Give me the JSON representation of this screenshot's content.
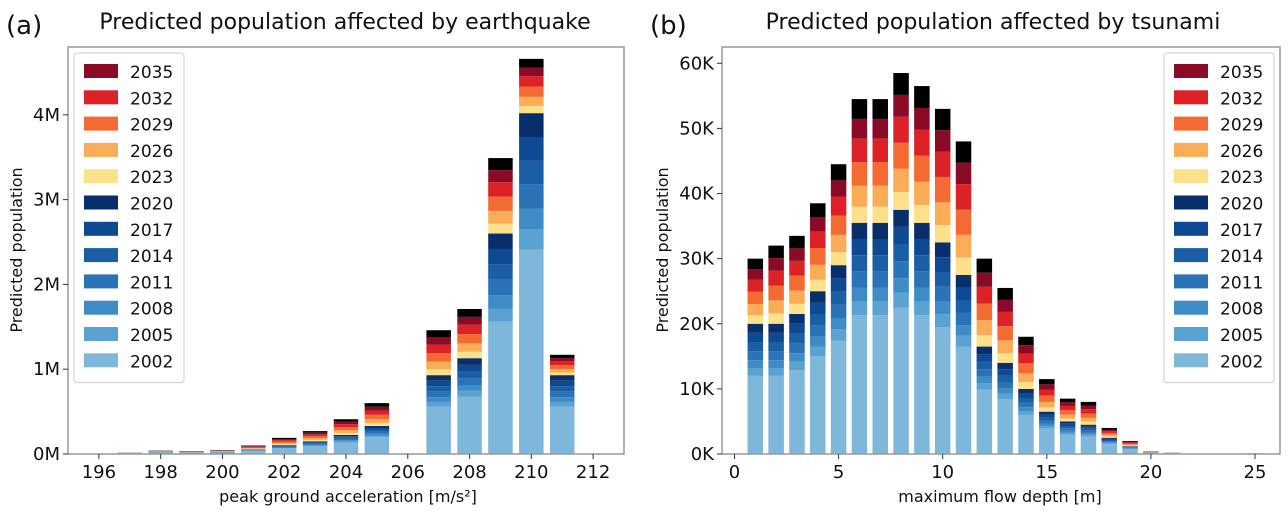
{
  "years": [
    "2002",
    "2005",
    "2008",
    "2011",
    "2014",
    "2017",
    "2020",
    "2023",
    "2026",
    "2029",
    "2032",
    "2035"
  ],
  "colors": [
    "#7fb7db",
    "#5aa2d2",
    "#3e8bc6",
    "#2a73b6",
    "#1a5ea6",
    "#0d4a91",
    "#082f6b",
    "#fde08a",
    "#fbac56",
    "#f46a33",
    "#dc2226",
    "#8b0a26"
  ],
  "chart_data": [
    {
      "panel_label": "(a)",
      "type": "bar",
      "stacked": true,
      "title": "Predicted population affected by earthquake",
      "xlabel": "peak ground acceleration [m/s²]",
      "ylabel": "Predicted population",
      "x_ticks": [
        196,
        198,
        200,
        202,
        204,
        206,
        208,
        210,
        212
      ],
      "xlim": [
        195,
        213
      ],
      "y_ticks": [
        0,
        1000000,
        2000000,
        3000000,
        4000000
      ],
      "y_tick_labels": [
        "0M",
        "1M",
        "2M",
        "3M",
        "4M"
      ],
      "ylim": [
        0,
        4800000
      ],
      "legend": "top-left",
      "series_order": "bottom-to-top 2002→2035",
      "x": [
        197,
        198,
        199,
        200,
        201,
        202,
        203,
        204,
        205,
        207,
        208,
        209,
        210,
        211
      ],
      "totals": [
        15000,
        40000,
        35000,
        45000,
        100000,
        190000,
        270000,
        410000,
        600000,
        1460000,
        1710000,
        3490000,
        4660000,
        1170000
      ],
      "base_2020": [
        8000,
        22000,
        20000,
        25000,
        55000,
        105000,
        150000,
        225000,
        330000,
        930000,
        1130000,
        2600000,
        4020000,
        930000
      ]
    },
    {
      "panel_label": "(b)",
      "type": "bar",
      "stacked": true,
      "title": "Predicted population affected by tsunami",
      "xlabel": "maximum flow depth [m]",
      "ylabel": "Predicted population",
      "x_ticks": [
        0,
        5,
        10,
        15,
        20,
        25
      ],
      "xlim": [
        -0.6,
        26.2
      ],
      "y_ticks": [
        0,
        10000,
        20000,
        30000,
        40000,
        50000,
        60000
      ],
      "y_tick_labels": [
        "0K",
        "10K",
        "20K",
        "30K",
        "40K",
        "50K",
        "60K"
      ],
      "ylim": [
        0,
        62500
      ],
      "legend": "top-right",
      "series_order": "bottom-to-top 2002→2035",
      "x": [
        1,
        2,
        3,
        4,
        5,
        6,
        7,
        8,
        9,
        10,
        11,
        12,
        13,
        14,
        15,
        16,
        17,
        18,
        19,
        20,
        21,
        25
      ],
      "totals": [
        30000,
        32000,
        33500,
        38500,
        44500,
        54500,
        54500,
        58500,
        56500,
        53000,
        48000,
        30000,
        25500,
        18000,
        11500,
        8500,
        8000,
        4000,
        2000,
        400,
        200,
        100
      ],
      "base_2020": [
        20000,
        20000,
        21500,
        25000,
        29000,
        35500,
        35500,
        37500,
        35500,
        32500,
        27500,
        16500,
        14000,
        10000,
        6500,
        5000,
        4500,
        2500,
        1200,
        250,
        120,
        60
      ]
    }
  ]
}
